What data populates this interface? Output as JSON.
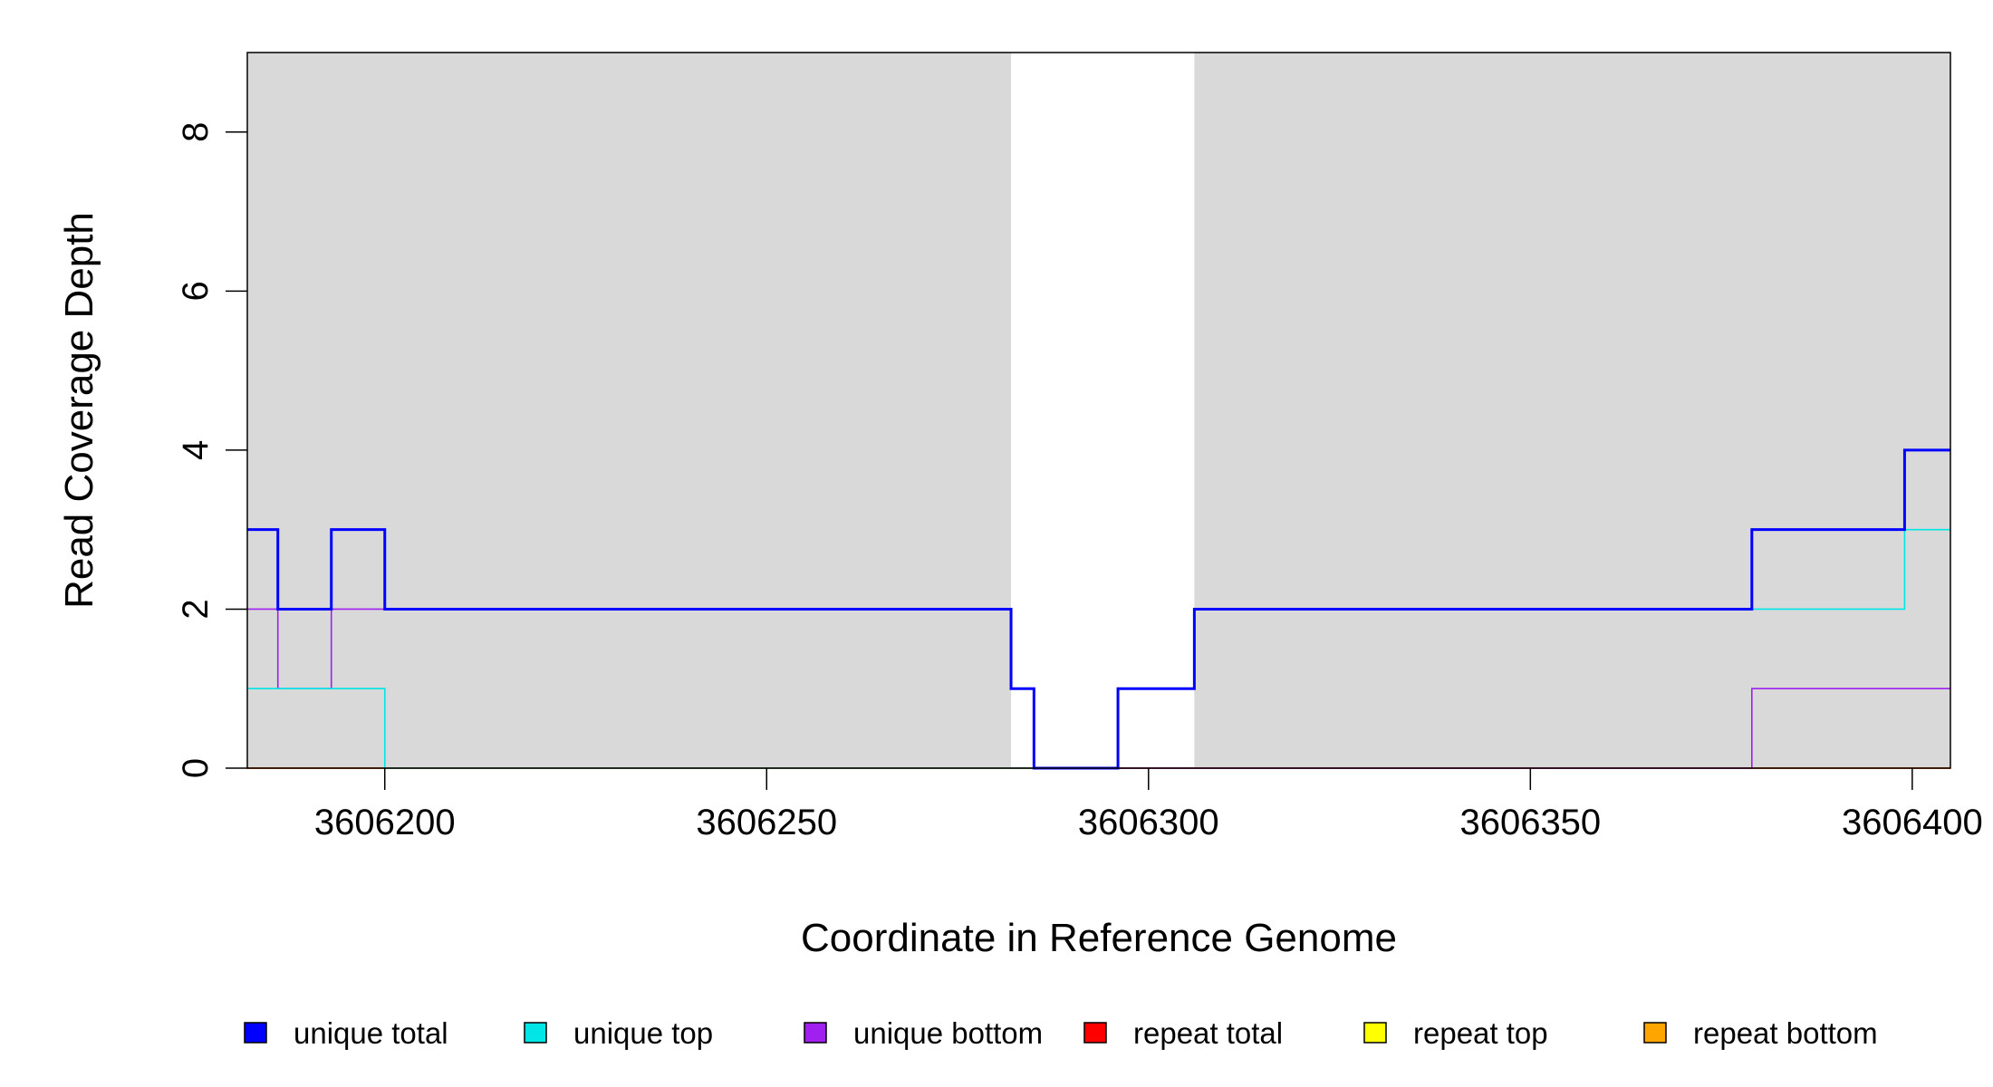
{
  "chart_data": {
    "type": "line",
    "xlabel": "Coordinate in Reference Genome",
    "ylabel": "Read Coverage Depth",
    "xlim": [
      3606182,
      3606405
    ],
    "ylim": [
      0,
      9
    ],
    "x_ticks": [
      3606200,
      3606250,
      3606300,
      3606350,
      3606400
    ],
    "x_tick_labels": [
      "3606200",
      "3606250",
      "3606300",
      "3606350",
      "3606400"
    ],
    "y_ticks": [
      0,
      2,
      4,
      6,
      8
    ],
    "y_tick_labels": [
      "0",
      "2",
      "4",
      "6",
      "8"
    ],
    "grid": false,
    "legend_position": "bottom",
    "shaded_regions": [
      {
        "start": 3606182,
        "end": 3606282,
        "color": "#d9d9d9"
      },
      {
        "start": 3606306,
        "end": 3606405,
        "color": "#d9d9d9"
      }
    ],
    "series": [
      {
        "name": "unique total",
        "color": "#0000ff",
        "x": [
          3606182,
          3606186,
          3606193,
          3606200,
          3606282,
          3606285,
          3606296,
          3606306,
          3606379,
          3606399,
          3606405
        ],
        "values": [
          3,
          2,
          3,
          2,
          1,
          0,
          1,
          2,
          3,
          4,
          4
        ]
      },
      {
        "name": "unique top",
        "color": "#00e5e5",
        "x": [
          3606182,
          3606200,
          3606296,
          3606306,
          3606399,
          3606405
        ],
        "values": [
          1,
          0,
          1,
          2,
          3,
          3
        ]
      },
      {
        "name": "unique bottom",
        "color": "#a020f0",
        "x": [
          3606182,
          3606186,
          3606193,
          3606282,
          3606285,
          3606306,
          3606379,
          3606405
        ],
        "values": [
          2,
          1,
          2,
          1,
          0,
          0,
          1,
          1
        ]
      },
      {
        "name": "repeat total",
        "color": "#ff0000",
        "x": [
          3606182,
          3606405
        ],
        "values": [
          0,
          0
        ]
      },
      {
        "name": "repeat top",
        "color": "#ffff00",
        "x": [
          3606182,
          3606405
        ],
        "values": [
          0,
          0
        ]
      },
      {
        "name": "repeat bottom",
        "color": "#ffa500",
        "x": [
          3606182,
          3606405
        ],
        "values": [
          0,
          0
        ]
      }
    ]
  }
}
